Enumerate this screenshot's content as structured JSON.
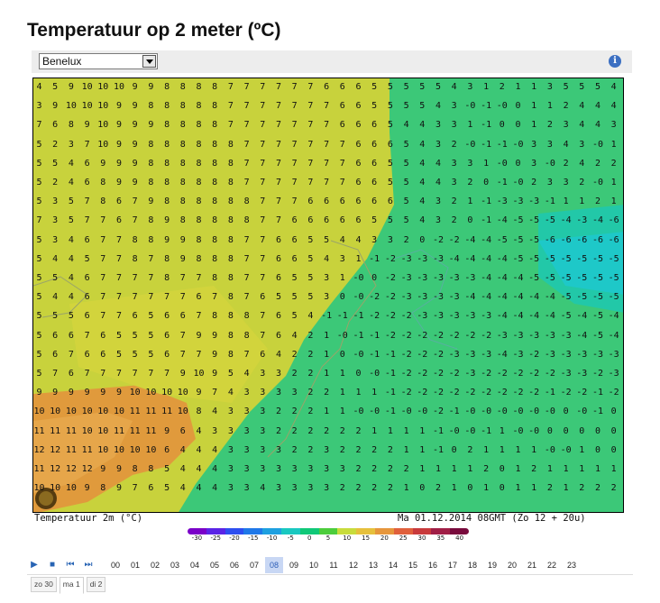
{
  "title": "Temperatuur op 2 meter (ºC)",
  "region_select": {
    "value": "Benelux"
  },
  "info_icon": "i",
  "grid_rows": [
    "4 5 9 10 10 10 9 9 8 8 8 8 7 7 7 7 7 7 6 6 6 5 5 5 5 5 4 3 1 2 1 1 3 5 5 5 4",
    "3 9 10 10 10 9 9 8 8 8 8 8 7 7 7 7 7 7 7 6 6 5 5 5 5 4 3 -0 -1 -0 0 1 1 2 4 4 4",
    "7 6 8 9 10 9 9 9 8 8 8 8 7 7 7 7 7 7 7 6 6 6 5 4 4 3 3 1 -1 0 0 1 2 3 4 4 3",
    "5 2 3 7 10 9 9 8 8 8 8 8 8 7 7 7 7 7 7 7 6 6 6 5 4 3 2 -0 -1 -1 -0 3 3 4 3 -0 1",
    "5 5 4 6 9 9 9 8 8 8 8 8 8 7 7 7 7 7 7 7 6 6 5 5 4 4 3 3 1 -0 0 3 -0 2 4 2 2",
    "5 2 4 6 8 9 9 8 8 8 8 8 8 7 7 7 7 7 7 7 6 6 5 5 4 4 3 2 0 -1 -0 2 3 3 2 -0 1",
    "5 3 5 7 8 6 7 9 8 8 8 8 8 8 7 7 7 6 6 6 6 6 6 5 4 3 2 1 -1 -3 -3 -3 -1 1 1 2 1",
    "7 3 5 7 7 6 7 8 9 8 8 8 8 8 7 7 6 6 6 6 6 5 5 5 4 3 2 0 -1 -4 -5 -5 -5 -4 -3 -4 -6",
    "5 3 4 6 7 7 8 8 9 9 8 8 8 7 7 6 6 5 5 4 4 3 3 2 0 -2 -2 -4 -4 -5 -5 -5 -6 -6 -6 -6 -6",
    "5 4 4 5 7 7 8 7 8 9 8 8 8 7 7 6 6 5 4 3 1 -1 -2 -3 -3 -3 -4 -4 -4 -4 -5 -5 -5 -5 -5 -5 -5",
    "5 5 4 6 7 7 7 7 8 7 7 8 8 7 7 6 5 5 3 1 -0 0 -2 -3 -3 -3 -3 -3 -4 -4 -4 -5 -5 -5 -5 -5 -5",
    "5 4 4 6 7 7 7 7 7 7 6 7 8 7 6 5 5 5 3 0 -0 -2 -2 -3 -3 -3 -3 -4 -4 -4 -4 -4 -4 -5 -5 -5 -5",
    "5 5 5 6 7 7 6 5 6 6 7 8 8 8 7 6 5 4 -1 -1 -1 -2 -2 -2 -3 -3 -3 -3 -3 -4 -4 -4 -4 -5 -4 -5 -4",
    "5 6 6 7 6 5 5 5 6 7 9 9 8 8 7 6 4 2 1 -0 -1 -1 -2 -2 -2 -2 -2 -2 -2 -3 -3 -3 -3 -3 -4 -5 -4",
    "5 6 7 6 6 5 5 5 6 7 7 9 8 7 6 4 2 2 1 0 -0 -1 -1 -2 -2 -2 -3 -3 -3 -4 -3 -2 -3 -3 -3 -3 -3",
    "5 7 6 7 7 7 7 7 7 9 10 9 5 4 3 3 2 2 1 1 0 -0 -1 -2 -2 -2 -2 -3 -2 -2 -2 -2 -2 -3 -3 -2 -3",
    "9 9 9 9 9 9 10 10 10 10 9 7 4 3 3 3 3 2 2 1 1 1 -1 -2 -2 -2 -2 -2 -2 -2 -2 -2 -1 -2 -2 -1 -2",
    "10 10 10 10 10 10 11 11 11 10 8 4 3 3 3 2 2 2 1 1 -0 -0 -1 -0 -0 -2 -1 -0 -0 -0 -0 -0 -0 0 -0 -1 0",
    "11 11 11 10 10 11 11 11 9 6 4 3 3 3 3 2 2 2 2 2 2 1 1 1 1 -1 -0 -0 -1 1 -0 -0 0 0 0 0 0",
    "12 12 11 11 10 10 10 10 6 4 4 4 3 3 3 3 2 2 3 2 2 2 2 1 1 -1 0 2 1 1 1 1 -0 -0 1 0 0",
    "11 12 12 12 9 9 8 8 5 4 4 4 3 3 3 3 3 3 3 3 2 2 2 2 1 1 1 1 2 0 1 2 1 1 1 1 1",
    "10 10 10 9 8 9 7 6 5 4 4 4 3 3 4 3 3 3 3 2 2 2 2 1 0 2 1 0 1 0 1 1 2 1 2 2 2"
  ],
  "caption_left": "Temperatuur 2m (°C)",
  "caption_right": "Ma 01.12.2014 08GMT (Zo 12 + 20u)",
  "scale_labels": [
    "-30",
    "-25",
    "-20",
    "-15",
    "-10",
    "-5",
    "0",
    "5",
    "10",
    "15",
    "20",
    "25",
    "30",
    "35",
    "40"
  ],
  "scale_colors": [
    "#7a00c8",
    "#5a24e6",
    "#2d4ef0",
    "#1f78e8",
    "#1ea0e0",
    "#19c8c0",
    "#10c878",
    "#4ccd3c",
    "#c8dc3c",
    "#e6c03c",
    "#e6963c",
    "#e0603c",
    "#c83a3c",
    "#a01e46",
    "#780a3c"
  ],
  "hours": [
    "00",
    "01",
    "02",
    "03",
    "04",
    "05",
    "06",
    "07",
    "08",
    "09",
    "10",
    "11",
    "12",
    "13",
    "14",
    "15",
    "16",
    "17",
    "18",
    "19",
    "20",
    "21",
    "22",
    "23"
  ],
  "active_hour": "08",
  "days": [
    "zo 30",
    "ma 1",
    "di 2"
  ],
  "active_day": "ma 1",
  "colors": {
    "map_yellow": "#c8d23c",
    "map_green": "#3cc878",
    "map_orange": "#e09a3c",
    "map_cyan": "#19c8c0",
    "accent": "#2864b4"
  }
}
